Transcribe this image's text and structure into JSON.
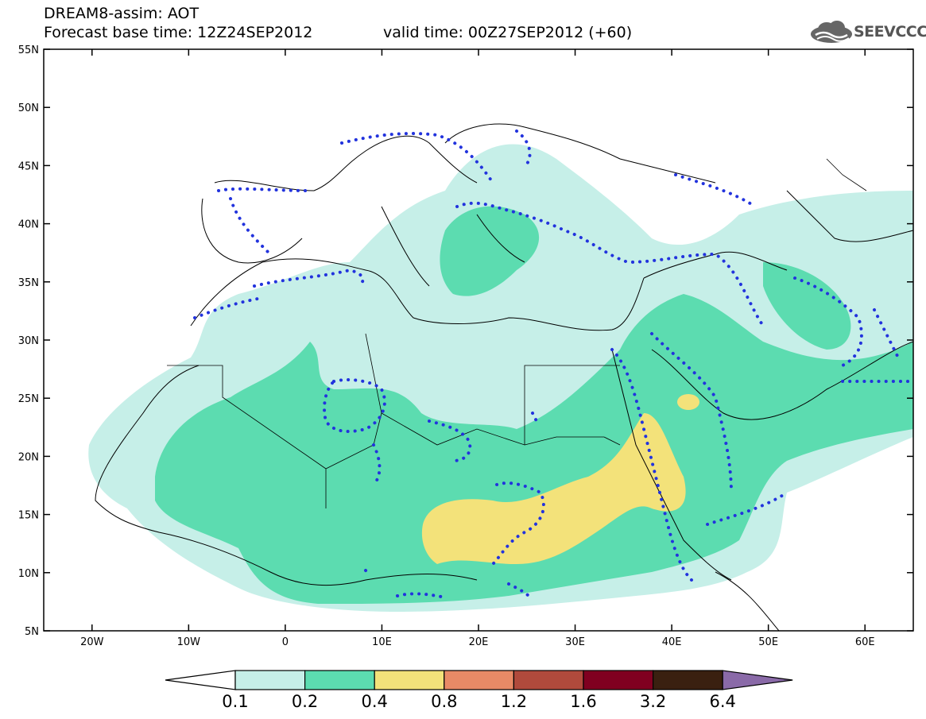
{
  "header": {
    "title": "DREAM8-assim: AOT",
    "base_time": "Forecast base time: 12Z24SEP2012",
    "valid_time": "valid time: 00Z27SEP2012 (+60)"
  },
  "logo": {
    "text": "SEEVCCC",
    "icon": "cloud-logo-icon"
  },
  "map": {
    "lat_labels": [
      "55N",
      "50N",
      "45N",
      "40N",
      "35N",
      "30N",
      "25N",
      "20N",
      "15N",
      "10N",
      "5N"
    ],
    "lon_labels": [
      "20W",
      "10W",
      "0",
      "10E",
      "20E",
      "30E",
      "40E",
      "50E",
      "60E"
    ],
    "lat_range": [
      5,
      55
    ],
    "lon_range": [
      -25,
      65
    ]
  },
  "colorbar": {
    "labels": [
      "0.1",
      "0.2",
      "0.4",
      "0.8",
      "1.2",
      "1.6",
      "3.2",
      "6.4"
    ],
    "colors": [
      "#c6efe8",
      "#5cdcb0",
      "#f3e27a",
      "#e88a66",
      "#b04a3c",
      "#800020",
      "#3a2010",
      "#8a6aa8"
    ]
  },
  "colors": {
    "land_outline": "#000000",
    "contour_dots": "#2233dd",
    "aot_low": "#c6efe8",
    "aot_mid": "#5cdcb0",
    "aot_high": "#f3e27a"
  }
}
